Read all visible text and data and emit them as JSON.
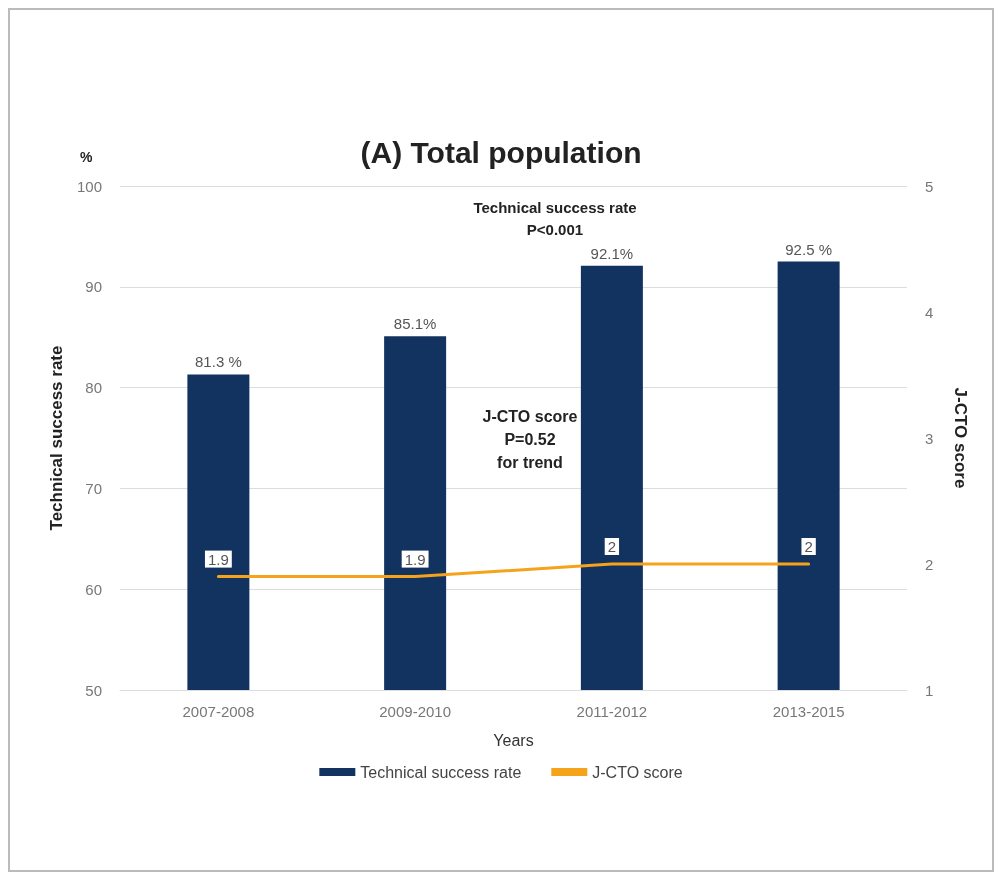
{
  "chart_data": {
    "type": "bar",
    "title": "(A) Total population",
    "xlabel": "Years",
    "ylabel": "Technical success rate",
    "y2label": "J-CTO score",
    "annotations": [
      "%",
      "Technical success rate\nP<0.001",
      "J-CTO score\nP=0.52\nfor trend"
    ],
    "categories": [
      "2007-2008",
      "2009-2010",
      "2011-2012",
      "2013-2015"
    ],
    "series": [
      {
        "name": "Technical success rate",
        "color": "#12325f",
        "values": [
          81.3,
          85.1,
          92.1,
          92.5
        ],
        "value_labels": [
          "81.3 %",
          "85.1%",
          "92.1%",
          "92.5 %"
        ]
      },
      {
        "name": "J-CTO score",
        "type": "line",
        "axis": "y2",
        "color": "#f5a31a",
        "values": [
          1.9,
          1.9,
          2,
          2
        ],
        "value_labels": [
          "1.9",
          "1.9",
          "2",
          "2"
        ]
      }
    ],
    "ylim": [
      50,
      100
    ],
    "yticks": [
      50,
      60,
      70,
      80,
      90,
      100
    ],
    "y2lim": [
      1,
      5
    ],
    "y2ticks": [
      1,
      2,
      3,
      4,
      5
    ],
    "grid": "y",
    "legend": "bottom",
    "marker": "none",
    "line_style": "solid"
  }
}
